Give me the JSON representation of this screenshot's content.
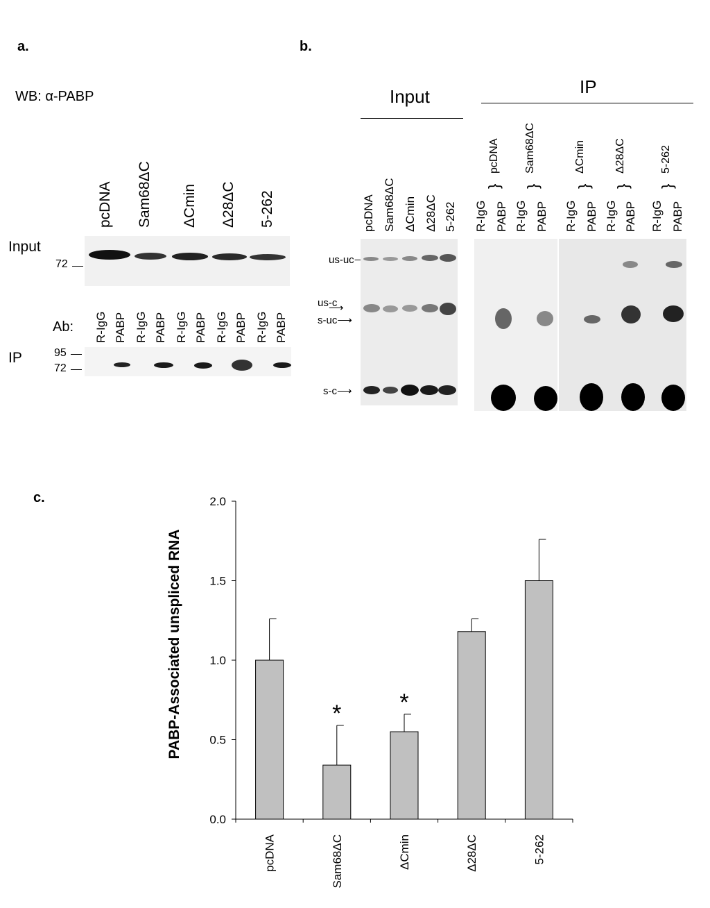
{
  "panel_a": {
    "letter": "a.",
    "wb_label": "WB: α-PABP",
    "lanes": [
      "pcDNA",
      "Sam68ΔC",
      "ΔCmin",
      "Δ28ΔC",
      "5-262"
    ],
    "input_label": "Input",
    "marker_72": "72",
    "marker_95": "95",
    "ab_label": "Ab:",
    "ip_label": "IP",
    "ab_lanes": [
      "R-IgG",
      "PABP",
      "R-IgG",
      "PABP",
      "R-IgG",
      "PABP",
      "R-IgG",
      "PABP",
      "R-IgG",
      "PABP"
    ]
  },
  "panel_b": {
    "letter": "b.",
    "input_header": "Input",
    "ip_header": "IP",
    "input_lanes": [
      "pcDNA",
      "Sam68ΔC",
      "ΔCmin",
      "Δ28ΔC",
      "5-262"
    ],
    "ip_lanes": [
      "R-IgG",
      "PABP",
      "R-IgG",
      "PABP",
      "R-IgG",
      "PABP",
      "R-IgG",
      "PABP",
      "R-IgG",
      "PABP"
    ],
    "ip_groups": [
      "pcDNA",
      "Sam68ΔC",
      "ΔCmin",
      "Δ28ΔC",
      "5-262"
    ],
    "band_labels": [
      "us-uc",
      "us-c",
      "s-uc",
      "s-c"
    ]
  },
  "panel_c": {
    "letter": "c."
  },
  "chart_data": {
    "type": "bar",
    "categories": [
      "pcDNA",
      "Sam68ΔC",
      "ΔCmin",
      "Δ28ΔC",
      "5-262"
    ],
    "values": [
      1.0,
      0.34,
      0.55,
      1.18,
      1.5
    ],
    "errors": [
      0.26,
      0.25,
      0.11,
      0.08,
      0.26
    ],
    "significance": [
      "",
      "*",
      "*",
      "",
      ""
    ],
    "ylabel": "PABP-Associated unspliced RNA",
    "xlabel": "",
    "ylim": [
      0,
      2.0
    ],
    "yticks": [
      "0.0",
      "0.5",
      "1.0",
      "1.5",
      "2.0"
    ],
    "bar_color": "#c0c0c0",
    "grid": false
  }
}
